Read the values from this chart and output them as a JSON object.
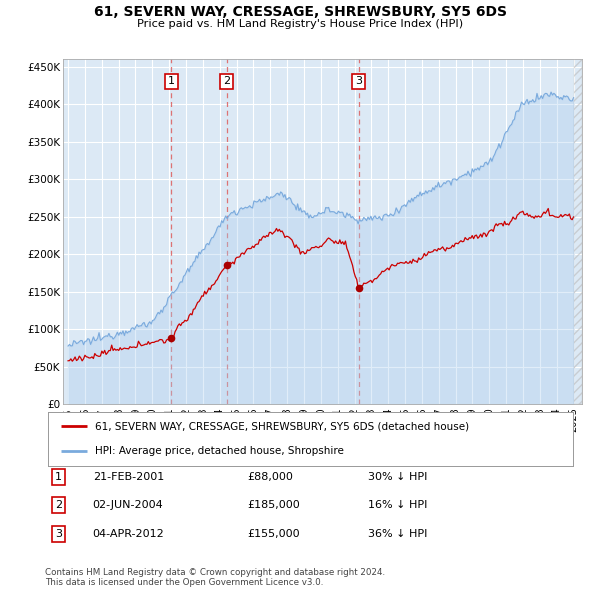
{
  "title": "61, SEVERN WAY, CRESSAGE, SHREWSBURY, SY5 6DS",
  "subtitle": "Price paid vs. HM Land Registry's House Price Index (HPI)",
  "plot_bg_color": "#dce9f5",
  "grid_color": "#ffffff",
  "red_line_color": "#cc0000",
  "blue_line_color": "#7aaadd",
  "sale_markers": [
    {
      "date_num": 2001.13,
      "price": 88000,
      "label": "1"
    },
    {
      "date_num": 2004.42,
      "price": 185000,
      "label": "2"
    },
    {
      "date_num": 2012.25,
      "price": 155000,
      "label": "3"
    }
  ],
  "vline_dates": [
    2001.13,
    2004.42,
    2012.25
  ],
  "ylim": [
    0,
    460000
  ],
  "xlim": [
    1994.7,
    2025.5
  ],
  "yticks": [
    0,
    50000,
    100000,
    150000,
    200000,
    250000,
    300000,
    350000,
    400000,
    450000
  ],
  "ytick_labels": [
    "£0",
    "£50K",
    "£100K",
    "£150K",
    "£200K",
    "£250K",
    "£300K",
    "£350K",
    "£400K",
    "£450K"
  ],
  "xtick_years": [
    1995,
    1996,
    1997,
    1998,
    1999,
    2000,
    2001,
    2002,
    2003,
    2004,
    2005,
    2006,
    2007,
    2008,
    2009,
    2010,
    2011,
    2012,
    2013,
    2014,
    2015,
    2016,
    2017,
    2018,
    2019,
    2020,
    2021,
    2022,
    2023,
    2024,
    2025
  ],
  "legend_red": "61, SEVERN WAY, CRESSAGE, SHREWSBURY, SY5 6DS (detached house)",
  "legend_blue": "HPI: Average price, detached house, Shropshire",
  "table_rows": [
    {
      "num": "1",
      "date": "21-FEB-2001",
      "price": "£88,000",
      "hpi": "30% ↓ HPI"
    },
    {
      "num": "2",
      "date": "02-JUN-2004",
      "price": "£185,000",
      "hpi": "16% ↓ HPI"
    },
    {
      "num": "3",
      "date": "04-APR-2012",
      "price": "£155,000",
      "hpi": "36% ↓ HPI"
    }
  ],
  "footer": "Contains HM Land Registry data © Crown copyright and database right 2024.\nThis data is licensed under the Open Government Licence v3.0."
}
